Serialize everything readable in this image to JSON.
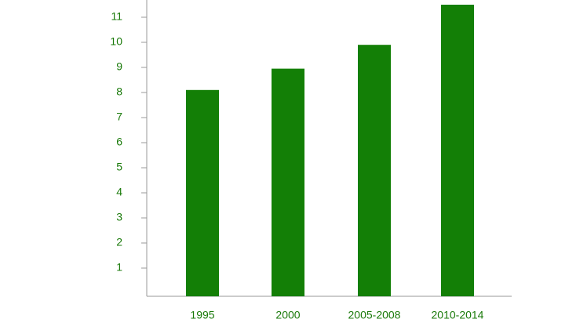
{
  "chart_data": {
    "type": "bar",
    "categories": [
      "1995",
      "2000",
      "2005-2008",
      "2010-2014"
    ],
    "values": [
      8.1,
      8.95,
      9.9,
      11.5
    ],
    "color": "#137f06",
    "ylim": [
      -0.125,
      11.6
    ],
    "yticks": [
      1,
      2,
      3,
      4,
      5,
      6,
      7,
      8,
      9,
      10,
      11
    ],
    "grid": false
  }
}
